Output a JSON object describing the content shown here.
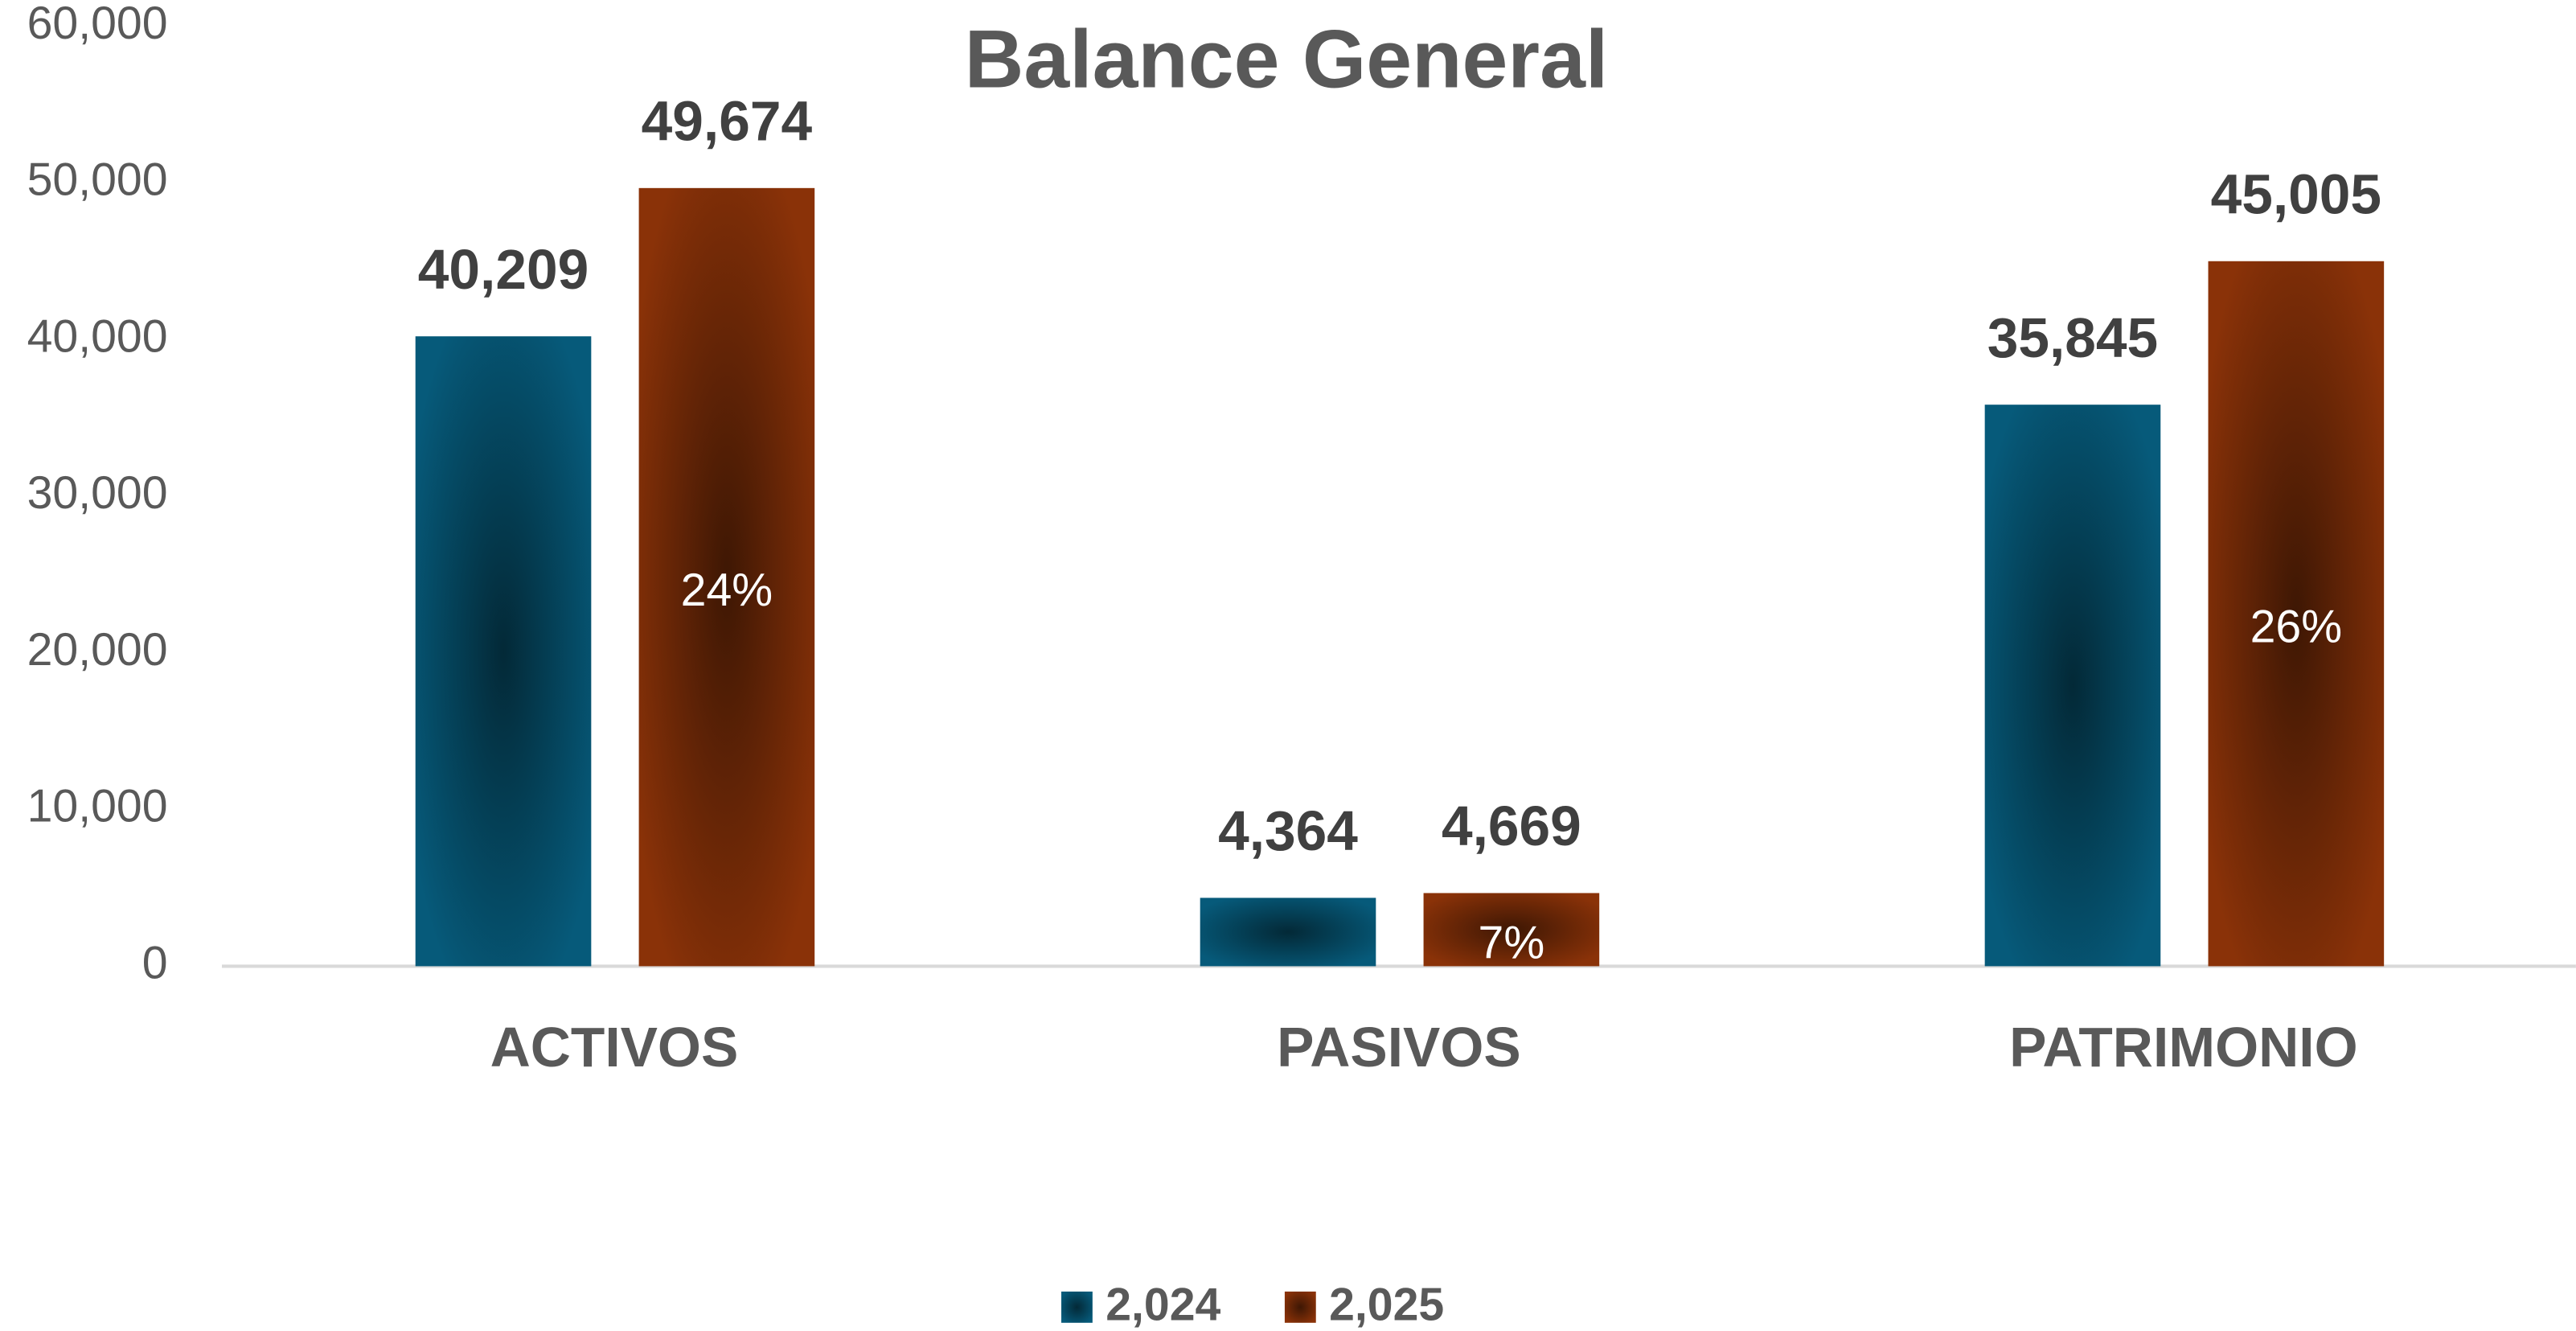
{
  "chart_data": {
    "type": "bar",
    "title": "Balance General",
    "categories": [
      "ACTIVOS",
      "PASIVOS",
      "PATRIMONIO"
    ],
    "series": [
      {
        "name": "2,024",
        "color": "#065a7a",
        "values": [
          40209,
          4364,
          35845
        ],
        "value_labels": [
          "40,209",
          "4,364",
          "35,845"
        ]
      },
      {
        "name": "2,025",
        "color": "#8a3208",
        "values": [
          49674,
          4669,
          45005
        ],
        "value_labels": [
          "49,674",
          "4,669",
          "45,005"
        ],
        "annotations": [
          "24%",
          "7%",
          "26%"
        ]
      }
    ],
    "ylim": [
      0,
      60000
    ],
    "yticks": [
      0,
      {
        "value": 10000,
        "label": "10,000"
      },
      {
        "value": 20000,
        "label": "20,000"
      },
      {
        "value": 30000,
        "label": "30,000"
      },
      {
        "value": 40000,
        "label": "40,000"
      },
      {
        "value": 50000,
        "label": "50,000"
      },
      {
        "value": 60000,
        "label": "60,000"
      }
    ],
    "grid": false,
    "legend": "bottom"
  }
}
